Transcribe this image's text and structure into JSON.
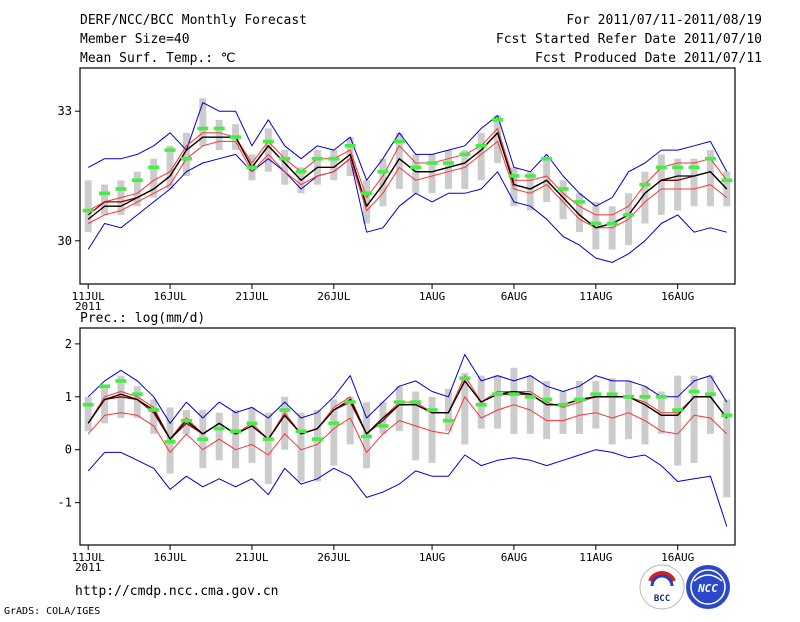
{
  "header": {
    "title": "DERF/NCC/BCC Monthly Forecast",
    "member_size": "Member Size=40",
    "variable": "Mean Surf. Temp.: ℃",
    "period": "For 2011/07/11-2011/08/19",
    "fcst_started": "Fcst Started Refer Date 2011/07/10",
    "fcst_produced": "Fcst Produced Date 2011/07/11"
  },
  "footer": {
    "url": "http://cmdp.ncc.cma.gov.cn",
    "credit": "GrADS: COLA/IGES",
    "logo_bcc": "BCC",
    "logo_ncc": "NCC"
  },
  "colors": {
    "envelope": "#0000cc",
    "spread": "#ff3333",
    "median": "#000000",
    "bar": "#cccccc",
    "mark": "#44ee44"
  },
  "chart_data": [
    {
      "type": "line",
      "title": "Mean Surf. Temp.: ℃",
      "xlabel": "",
      "ylabel": "",
      "ylim": [
        29,
        34
      ],
      "yticks": [
        30,
        33
      ],
      "xlim": [
        0.5,
        40.5
      ],
      "x_tick_labels": [
        {
          "day": 1,
          "label": "11JUL",
          "sub": "2011"
        },
        {
          "day": 6,
          "label": "16JUL"
        },
        {
          "day": 11,
          "label": "21JUL"
        },
        {
          "day": 16,
          "label": "26JUL"
        },
        {
          "day": 22,
          "label": "1AUG"
        },
        {
          "day": 27,
          "label": "6AUG"
        },
        {
          "day": 32,
          "label": "11AUG"
        },
        {
          "day": 37,
          "label": "16AUG"
        }
      ],
      "x": [
        1,
        2,
        3,
        4,
        5,
        6,
        7,
        8,
        9,
        10,
        11,
        12,
        13,
        14,
        15,
        16,
        17,
        18,
        19,
        20,
        21,
        22,
        23,
        24,
        25,
        26,
        27,
        28,
        29,
        30,
        31,
        32,
        33,
        34,
        35,
        36,
        37,
        38,
        39,
        40
      ],
      "series": [
        {
          "name": "max",
          "values": [
            29.8,
            30.4,
            30.3,
            30.6,
            30.9,
            31.2,
            31.6,
            31.8,
            31.9,
            32.0,
            31.6,
            31.9,
            31.6,
            31.2,
            31.5,
            31.6,
            31.9,
            30.2,
            30.3,
            30.8,
            31.1,
            30.9,
            31.1,
            31.1,
            31.2,
            31.6,
            30.9,
            30.8,
            30.5,
            30.1,
            29.9,
            29.6,
            29.5,
            29.7,
            30.0,
            30.4,
            30.6,
            30.2,
            30.3,
            30.2
          ]
        },
        {
          "name": "min",
          "values": [
            31.7,
            31.9,
            31.9,
            32.0,
            32.2,
            32.5,
            32.1,
            33.2,
            33.0,
            33.0,
            32.2,
            32.8,
            32.2,
            31.9,
            32.2,
            32.1,
            32.4,
            31.4,
            31.9,
            32.5,
            32.0,
            32.0,
            32.1,
            32.2,
            32.6,
            32.9,
            31.7,
            31.6,
            32.0,
            31.5,
            31.1,
            30.8,
            31.0,
            31.6,
            31.8,
            32.1,
            32.1,
            32.2,
            32.3,
            31.6
          ]
        },
        {
          "name": "upper",
          "values": [
            30.7,
            30.9,
            31.0,
            31.1,
            31.4,
            31.6,
            32.2,
            32.5,
            32.5,
            32.4,
            31.8,
            32.3,
            31.9,
            31.6,
            31.9,
            31.9,
            32.1,
            31.0,
            31.5,
            32.2,
            31.8,
            31.8,
            31.9,
            32.0,
            32.2,
            32.6,
            31.4,
            31.4,
            31.5,
            31.1,
            30.8,
            30.6,
            30.6,
            30.8,
            31.3,
            31.7,
            31.8,
            31.8,
            31.9,
            31.4
          ]
        },
        {
          "name": "lower",
          "values": [
            30.4,
            30.6,
            30.7,
            30.9,
            31.1,
            31.3,
            31.9,
            32.2,
            32.3,
            32.3,
            31.6,
            32.0,
            31.6,
            31.3,
            31.5,
            31.6,
            31.9,
            30.7,
            31.1,
            31.7,
            31.4,
            31.5,
            31.6,
            31.7,
            32.0,
            32.3,
            31.2,
            31.1,
            31.3,
            30.9,
            30.5,
            30.3,
            30.3,
            30.5,
            30.9,
            31.2,
            31.2,
            31.2,
            31.3,
            31.0
          ]
        },
        {
          "name": "median",
          "values": [
            30.5,
            30.8,
            30.8,
            31.0,
            31.2,
            31.5,
            32.1,
            32.4,
            32.4,
            32.4,
            31.7,
            32.2,
            31.8,
            31.4,
            31.7,
            31.7,
            32.0,
            30.8,
            31.3,
            31.9,
            31.6,
            31.6,
            31.7,
            31.8,
            32.1,
            32.5,
            31.3,
            31.2,
            31.4,
            31.0,
            30.6,
            30.3,
            30.4,
            30.6,
            31.1,
            31.4,
            31.5,
            31.5,
            31.6,
            31.2
          ]
        },
        {
          "name": "mean",
          "values": [
            30.6,
            30.9,
            30.9,
            31.0,
            31.2,
            31.5,
            32.1,
            32.4,
            32.4,
            32.4,
            31.7,
            32.2,
            31.8,
            31.4,
            31.7,
            31.7,
            32.0,
            30.8,
            31.3,
            31.9,
            31.6,
            31.6,
            31.7,
            31.8,
            32.1,
            32.5,
            31.3,
            31.2,
            31.4,
            31.0,
            30.6,
            30.3,
            30.4,
            30.6,
            31.1,
            31.4,
            31.4,
            31.5,
            31.6,
            31.2
          ]
        },
        {
          "name": "bar_top",
          "values": [
            31.4,
            31.3,
            31.4,
            31.6,
            31.9,
            32.2,
            32.5,
            33.3,
            32.8,
            32.7,
            32.0,
            32.6,
            32.1,
            31.7,
            32.1,
            32.1,
            32.4,
            31.4,
            31.9,
            32.5,
            32.0,
            32.0,
            32.1,
            32.1,
            32.5,
            32.9,
            31.7,
            31.6,
            31.9,
            31.4,
            31.1,
            30.9,
            30.8,
            31.1,
            31.6,
            32.0,
            31.9,
            31.9,
            32.1,
            31.6
          ]
        },
        {
          "name": "bar_bottom",
          "values": [
            30.2,
            30.6,
            30.6,
            30.8,
            31.0,
            31.2,
            31.5,
            32.2,
            32.1,
            32.1,
            31.4,
            31.6,
            31.3,
            31.1,
            31.3,
            31.4,
            31.5,
            30.4,
            30.8,
            31.2,
            31.1,
            31.1,
            31.2,
            31.2,
            31.4,
            31.8,
            30.8,
            30.7,
            30.9,
            30.5,
            30.2,
            29.8,
            29.8,
            29.9,
            30.4,
            30.6,
            30.7,
            30.8,
            30.8,
            30.8
          ]
        },
        {
          "name": "mark",
          "values": [
            30.7,
            31.1,
            31.2,
            31.4,
            31.7,
            32.1,
            31.9,
            32.6,
            32.6,
            32.4,
            31.7,
            32.3,
            31.9,
            31.6,
            31.9,
            31.9,
            32.2,
            31.1,
            31.6,
            32.3,
            31.7,
            31.8,
            31.8,
            32.0,
            32.2,
            32.8,
            31.5,
            31.5,
            31.9,
            31.2,
            30.9,
            30.4,
            30.4,
            30.6,
            31.3,
            31.7,
            31.7,
            31.7,
            31.9,
            31.4
          ]
        }
      ]
    },
    {
      "type": "line",
      "title": "Prec.: log(mm/d)",
      "xlabel": "",
      "ylabel": "",
      "ylim": [
        -1.8,
        2.3
      ],
      "yticks": [
        -1,
        0,
        1,
        2
      ],
      "xlim": [
        0.5,
        40.5
      ],
      "x_tick_labels": [
        {
          "day": 1,
          "label": "11JUL",
          "sub": "2011"
        },
        {
          "day": 6,
          "label": "16JUL"
        },
        {
          "day": 11,
          "label": "21JUL"
        },
        {
          "day": 16,
          "label": "26JUL"
        },
        {
          "day": 22,
          "label": "1AUG"
        },
        {
          "day": 27,
          "label": "6AUG"
        },
        {
          "day": 32,
          "label": "11AUG"
        },
        {
          "day": 37,
          "label": "16AUG"
        }
      ],
      "x": [
        1,
        2,
        3,
        4,
        5,
        6,
        7,
        8,
        9,
        10,
        11,
        12,
        13,
        14,
        15,
        16,
        17,
        18,
        19,
        20,
        21,
        22,
        23,
        24,
        25,
        26,
        27,
        28,
        29,
        30,
        31,
        32,
        33,
        34,
        35,
        36,
        37,
        38,
        39,
        40
      ],
      "series": [
        {
          "name": "max",
          "values": [
            1.0,
            1.3,
            1.5,
            1.3,
            1.0,
            0.5,
            0.9,
            0.6,
            0.9,
            0.7,
            0.8,
            0.6,
            0.9,
            0.6,
            0.7,
            1.0,
            1.4,
            0.6,
            0.9,
            1.2,
            1.3,
            1.1,
            1.0,
            1.8,
            1.3,
            1.4,
            1.3,
            1.4,
            1.2,
            1.1,
            1.2,
            1.4,
            1.3,
            1.3,
            1.2,
            1.0,
            1.0,
            1.3,
            1.4,
            0.9
          ]
        },
        {
          "name": "min",
          "values": [
            -0.4,
            -0.05,
            -0.05,
            -0.2,
            -0.35,
            -0.75,
            -0.5,
            -0.7,
            -0.55,
            -0.7,
            -0.55,
            -0.85,
            -0.35,
            -0.65,
            -0.55,
            -0.35,
            -0.5,
            -0.9,
            -0.8,
            -0.65,
            -0.4,
            -0.5,
            -0.5,
            -0.1,
            -0.3,
            -0.2,
            -0.15,
            -0.2,
            -0.3,
            -0.2,
            -0.1,
            0.0,
            -0.05,
            -0.15,
            -0.1,
            -0.3,
            -0.6,
            -0.55,
            -0.5,
            -1.45
          ]
        },
        {
          "name": "upper",
          "values": [
            0.5,
            1.0,
            1.1,
            1.0,
            0.8,
            0.2,
            0.6,
            0.3,
            0.5,
            0.3,
            0.5,
            0.2,
            0.7,
            0.3,
            0.4,
            0.8,
            1.0,
            0.3,
            0.6,
            0.9,
            0.9,
            0.7,
            0.7,
            1.4,
            0.9,
            1.1,
            1.1,
            1.1,
            0.9,
            0.8,
            0.9,
            1.0,
            1.0,
            1.0,
            0.9,
            0.7,
            0.7,
            1.0,
            1.0,
            0.6
          ]
        },
        {
          "name": "lower",
          "values": [
            0.3,
            0.65,
            0.7,
            0.65,
            0.45,
            -0.05,
            0.3,
            0.0,
            0.2,
            0.0,
            0.1,
            -0.1,
            0.3,
            0.0,
            0.1,
            0.4,
            0.6,
            -0.05,
            0.3,
            0.55,
            0.45,
            0.35,
            0.3,
            1.0,
            0.6,
            0.75,
            0.85,
            0.75,
            0.55,
            0.55,
            0.65,
            0.7,
            0.6,
            0.7,
            0.55,
            0.35,
            0.3,
            0.65,
            0.6,
            0.3
          ]
        },
        {
          "name": "median",
          "values": [
            0.5,
            0.95,
            1.05,
            0.95,
            0.75,
            0.2,
            0.55,
            0.3,
            0.5,
            0.3,
            0.45,
            0.2,
            0.65,
            0.3,
            0.4,
            0.75,
            0.95,
            0.3,
            0.6,
            0.85,
            0.85,
            0.7,
            0.7,
            1.3,
            0.9,
            1.05,
            1.1,
            1.05,
            0.85,
            0.85,
            0.95,
            1.0,
            1.0,
            1.0,
            0.85,
            0.65,
            0.65,
            1.0,
            1.0,
            0.6
          ]
        },
        {
          "name": "mean",
          "values": [
            0.5,
            0.95,
            1.0,
            0.95,
            0.7,
            0.2,
            0.5,
            0.3,
            0.5,
            0.3,
            0.45,
            0.2,
            0.65,
            0.3,
            0.4,
            0.75,
            0.9,
            0.3,
            0.55,
            0.85,
            0.85,
            0.7,
            0.7,
            1.3,
            0.9,
            1.05,
            1.05,
            1.05,
            0.85,
            0.85,
            0.95,
            1.0,
            1.0,
            1.0,
            0.85,
            0.65,
            0.65,
            1.0,
            1.0,
            0.6
          ]
        },
        {
          "name": "bar_top",
          "values": [
            1.0,
            1.2,
            1.4,
            1.2,
            0.95,
            0.8,
            0.75,
            0.75,
            0.7,
            0.75,
            0.8,
            0.7,
            1.0,
            0.7,
            0.75,
            0.95,
            1.0,
            0.9,
            0.9,
            1.2,
            1.1,
            1.0,
            1.15,
            1.45,
            1.4,
            1.4,
            1.55,
            1.4,
            1.3,
            1.1,
            1.3,
            1.3,
            1.35,
            1.3,
            1.2,
            1.1,
            1.4,
            1.4,
            1.4,
            0.95
          ]
        },
        {
          "name": "bar_bottom",
          "values": [
            0.35,
            0.5,
            0.6,
            0.6,
            0.3,
            -0.45,
            0.3,
            -0.35,
            -0.2,
            -0.35,
            -0.25,
            -0.65,
            0.0,
            -0.6,
            -0.6,
            -0.3,
            0.1,
            -0.35,
            0.3,
            0.35,
            -0.2,
            -0.25,
            0.35,
            0.1,
            0.4,
            0.4,
            0.3,
            0.3,
            0.2,
            0.3,
            0.3,
            0.4,
            0.1,
            0.2,
            0.1,
            0.3,
            -0.3,
            -0.25,
            0.3,
            -0.9
          ]
        },
        {
          "name": "mark",
          "values": [
            0.85,
            1.2,
            1.3,
            1.05,
            0.75,
            0.15,
            0.55,
            0.2,
            0.4,
            0.35,
            0.5,
            0.2,
            0.75,
            0.35,
            0.2,
            0.5,
            0.9,
            0.25,
            0.45,
            0.9,
            0.9,
            0.75,
            0.55,
            1.35,
            0.85,
            1.05,
            1.05,
            1.0,
            0.95,
            0.85,
            0.95,
            1.05,
            1.05,
            1.0,
            1.0,
            1.0,
            0.75,
            1.1,
            1.05,
            0.65
          ]
        }
      ]
    }
  ]
}
